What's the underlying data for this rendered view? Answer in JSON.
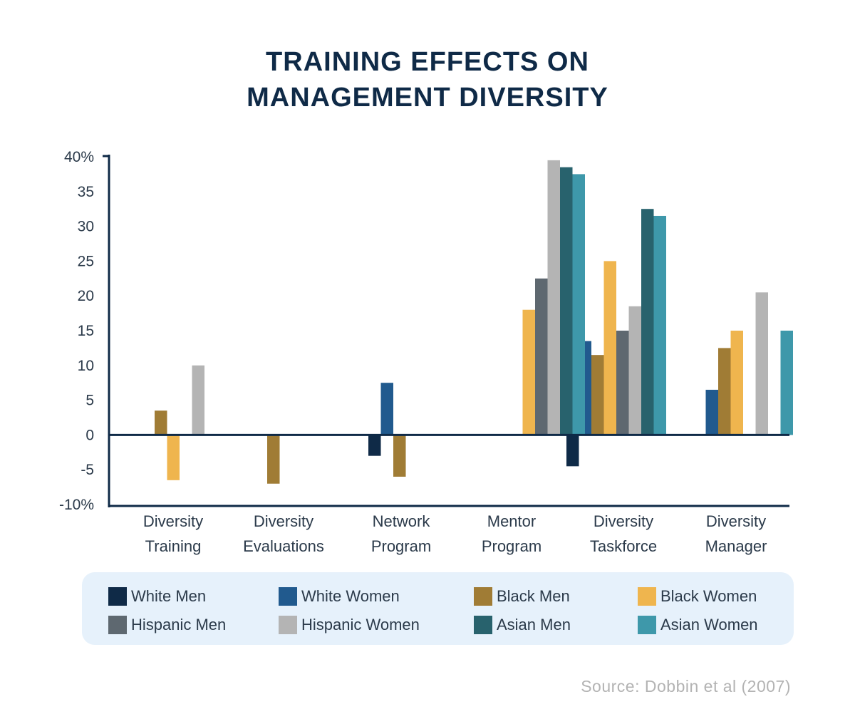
{
  "title_lines": [
    "TRAINING EFFECTS ON",
    "MANAGEMENT DIVERSITY"
  ],
  "source": "Source: Dobbin et al (2007)",
  "chart_data": {
    "type": "bar",
    "title": "TRAINING EFFECTS ON MANAGEMENT DIVERSITY",
    "xlabel": "",
    "ylabel": "",
    "ylim": [
      -10,
      40
    ],
    "y_ticks": [
      {
        "value": 40,
        "label": "40%"
      },
      {
        "value": 35,
        "label": "35"
      },
      {
        "value": 30,
        "label": "30"
      },
      {
        "value": 25,
        "label": "25"
      },
      {
        "value": 20,
        "label": "20"
      },
      {
        "value": 15,
        "label": "15"
      },
      {
        "value": 10,
        "label": "10"
      },
      {
        "value": 5,
        "label": "5"
      },
      {
        "value": 0,
        "label": "0"
      },
      {
        "value": -5,
        "label": "-5"
      },
      {
        "value": -10,
        "label": "-10%"
      }
    ],
    "categories": [
      [
        "Diversity",
        "Training"
      ],
      [
        "Diversity",
        "Evaluations"
      ],
      [
        "Network",
        "Program"
      ],
      [
        "Mentor",
        "Program"
      ],
      [
        "Diversity",
        "Taskforce"
      ],
      [
        "Diversity",
        "Manager"
      ]
    ],
    "series": [
      {
        "name": "White Men",
        "color": "#0f2a47",
        "values": [
          null,
          null,
          -3,
          null,
          -4.5,
          null
        ]
      },
      {
        "name": "White Women",
        "color": "#215a8e",
        "values": [
          null,
          null,
          7.5,
          null,
          13.5,
          6.5
        ]
      },
      {
        "name": "Black Men",
        "color": "#a07c35",
        "values": [
          3.5,
          -7,
          -6,
          null,
          11.5,
          12.5
        ]
      },
      {
        "name": "Black Women",
        "color": "#efb54e",
        "values": [
          -6.5,
          null,
          null,
          18,
          25,
          15
        ]
      },
      {
        "name": "Hispanic Men",
        "color": "#5e6870",
        "values": [
          null,
          null,
          null,
          22.5,
          15,
          null
        ]
      },
      {
        "name": "Hispanic Women",
        "color": "#b4b4b4",
        "values": [
          10,
          null,
          null,
          39.5,
          18.5,
          20.5
        ]
      },
      {
        "name": "Asian Men",
        "color": "#28626d",
        "values": [
          null,
          null,
          null,
          38.5,
          32.5,
          null
        ]
      },
      {
        "name": "Asian Women",
        "color": "#3e98aa",
        "values": [
          null,
          null,
          null,
          37.5,
          31.5,
          15
        ]
      }
    ],
    "legend_position": "bottom"
  }
}
